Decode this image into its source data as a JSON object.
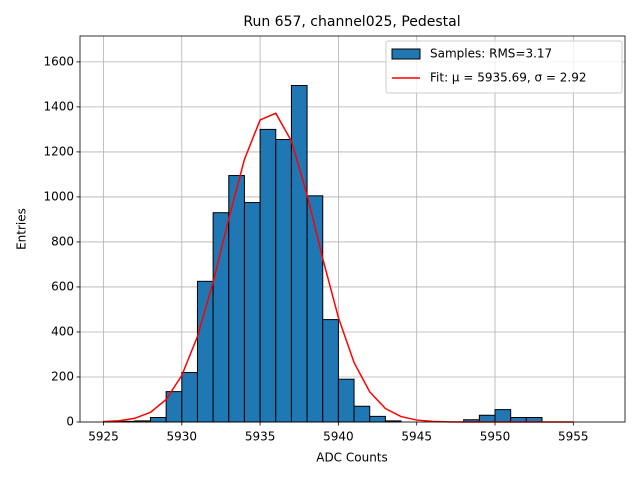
{
  "chart_data": {
    "type": "histogram",
    "title": "Run 657, channel025, Pedestal",
    "x_label": "ADC Counts",
    "y_label": "Entries",
    "bins": [
      5925,
      5926,
      5927,
      5928,
      5929,
      5930,
      5931,
      5932,
      5933,
      5934,
      5935,
      5936,
      5937,
      5938,
      5939,
      5940,
      5941,
      5942,
      5943,
      5944,
      5945,
      5946,
      5947,
      5948,
      5949,
      5950,
      5951,
      5952,
      5953
    ],
    "series": [
      {
        "name": "Samples: RMS=3.17",
        "color": "#1f77b4",
        "edgecolor": "#000000",
        "values": [
          2,
          3,
          5,
          20,
          135,
          220,
          625,
          930,
          1095,
          975,
          1300,
          1255,
          1495,
          1005,
          455,
          190,
          70,
          25,
          5,
          0,
          0,
          0,
          0,
          10,
          30,
          55,
          20,
          20
        ]
      },
      {
        "name": "Fit: μ = 5935.69, σ = 2.92",
        "type": "line",
        "color": "#ff0000",
        "x": [
          5925,
          5926,
          5927,
          5928,
          5929,
          5930,
          5931,
          5932,
          5933,
          5934,
          5935,
          5936,
          5937,
          5938,
          5939,
          5940,
          5941,
          5942,
          5943,
          5944,
          5945,
          5946,
          5947,
          5948,
          5949,
          5950,
          5951,
          5952,
          5953,
          5954,
          5955
        ],
        "values": [
          1.7,
          5.6,
          16.5,
          43,
          100,
          207,
          380,
          621,
          903,
          1167,
          1342,
          1372,
          1248,
          1009,
          726,
          464,
          264,
          134,
          60,
          24,
          8.6,
          2.7,
          0.8,
          0.2,
          0,
          0,
          0,
          0,
          0,
          0,
          0
        ]
      }
    ],
    "xlim": [
      5923.5,
      5958.3
    ],
    "ylim": [
      0,
      1715
    ],
    "xticks": [
      5925,
      5930,
      5935,
      5940,
      5945,
      5950,
      5955
    ],
    "yticks": [
      0,
      200,
      400,
      600,
      800,
      1000,
      1200,
      1400,
      1600
    ],
    "grid": true,
    "legend": "upper right"
  }
}
